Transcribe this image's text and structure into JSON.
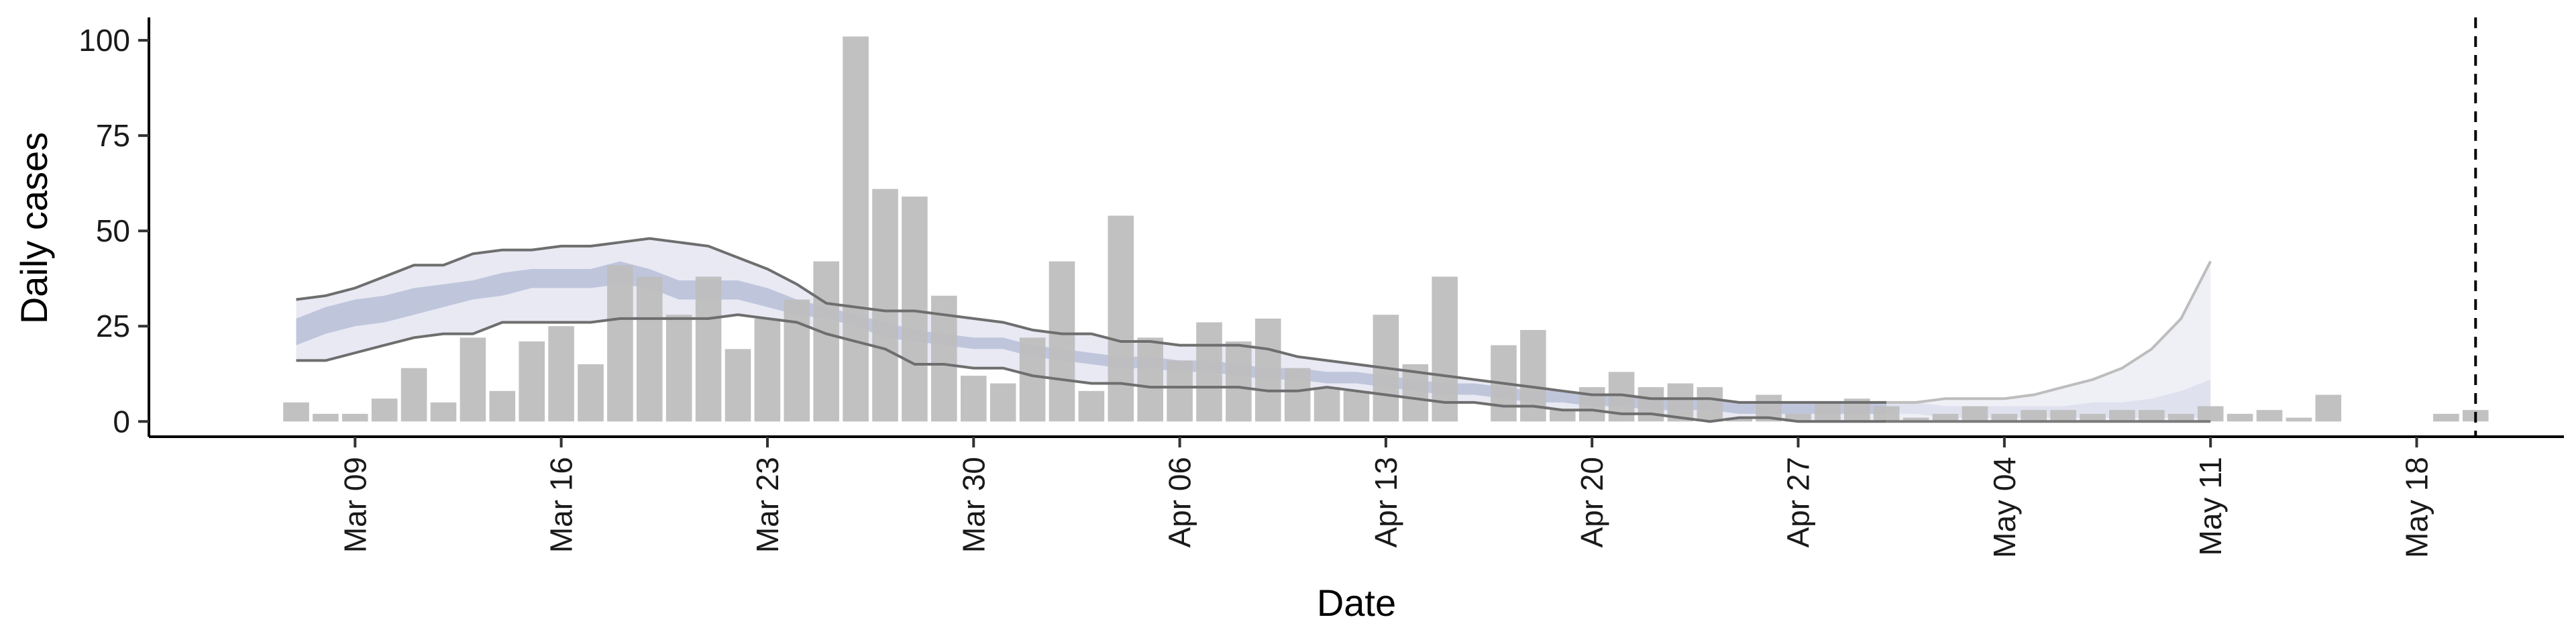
{
  "chart_data": {
    "type": "bar",
    "title": "",
    "xlabel": "Date",
    "ylabel": "Daily cases",
    "ylim": [
      -4,
      106
    ],
    "xlim": [
      "2020-03-02",
      "2020-05-23"
    ],
    "grid": false,
    "legend": "none",
    "y_ticks": [
      "0",
      "25",
      "50",
      "75",
      "100"
    ],
    "x_ticks": [
      {
        "date": "2020-03-09",
        "label": "Mar 09"
      },
      {
        "date": "2020-03-16",
        "label": "Mar 16"
      },
      {
        "date": "2020-03-23",
        "label": "Mar 23"
      },
      {
        "date": "2020-03-30",
        "label": "Mar 30"
      },
      {
        "date": "2020-04-06",
        "label": "Apr 06"
      },
      {
        "date": "2020-04-13",
        "label": "Apr 13"
      },
      {
        "date": "2020-04-20",
        "label": "Apr 20"
      },
      {
        "date": "2020-04-27",
        "label": "Apr 27"
      },
      {
        "date": "2020-05-04",
        "label": "May 04"
      },
      {
        "date": "2020-05-11",
        "label": "May 11"
      },
      {
        "date": "2020-05-18",
        "label": "May 18"
      }
    ],
    "reference_line_date": "2020-05-20",
    "bars": {
      "start_date": "2020-03-07",
      "values": [
        5,
        2,
        2,
        6,
        14,
        5,
        22,
        8,
        21,
        25,
        15,
        41,
        38,
        28,
        38,
        19,
        27,
        32,
        42,
        101,
        61,
        59,
        33,
        12,
        10,
        22,
        42,
        8,
        54,
        22,
        16,
        26,
        21,
        27,
        14,
        9,
        8,
        28,
        15,
        38,
        0,
        20,
        24,
        3,
        9,
        13,
        9,
        10,
        9,
        1,
        7,
        2,
        5,
        6,
        4,
        1,
        2,
        4,
        2,
        3,
        3,
        2,
        3,
        3,
        2,
        4,
        2,
        3,
        1,
        7,
        0,
        0,
        0,
        2,
        3
      ],
      "color": "#bebebe"
    },
    "estimate": {
      "start_date": "2020-03-07",
      "lower_90": [
        16,
        16,
        18,
        20,
        22,
        23,
        23,
        26,
        26,
        26,
        26,
        27,
        27,
        27,
        27,
        28,
        27,
        26,
        23,
        21,
        19,
        15,
        15,
        14,
        14,
        12,
        11,
        10,
        10,
        9,
        9,
        9,
        9,
        8,
        8,
        9,
        8,
        7,
        6,
        5,
        5,
        4,
        4,
        3,
        3,
        2,
        2,
        1,
        0,
        1,
        1,
        0,
        0,
        0,
        0,
        0,
        0,
        0,
        0,
        0,
        0,
        0,
        0,
        0,
        0,
        0
      ],
      "lower_50": [
        20,
        23,
        25,
        26,
        28,
        30,
        32,
        33,
        35,
        35,
        35,
        36,
        35,
        32,
        32,
        32,
        30,
        28,
        27,
        25,
        22,
        21,
        20,
        19,
        19,
        17,
        16,
        15,
        14,
        14,
        13,
        13,
        12,
        11,
        11,
        10,
        10,
        9,
        8,
        7,
        7,
        6,
        5,
        5,
        4,
        4,
        3,
        3,
        3,
        2,
        2,
        2,
        2,
        2,
        2,
        2,
        1,
        1,
        1,
        1,
        1,
        1,
        1,
        1,
        1,
        1
      ],
      "median": [
        22,
        25,
        27,
        29,
        31,
        32,
        34,
        36,
        36,
        36,
        36,
        38,
        37,
        34,
        34,
        34,
        32,
        30,
        28,
        26,
        24,
        22,
        21,
        20,
        20,
        18,
        17,
        16,
        15,
        15,
        14,
        14,
        13,
        12,
        12,
        11,
        11,
        10,
        9,
        8,
        8,
        7,
        6,
        6,
        5,
        5,
        4,
        4,
        4,
        3,
        3,
        3,
        3,
        3,
        3,
        3,
        2,
        2,
        2,
        2,
        2,
        2,
        2,
        2,
        3,
        3
      ],
      "upper_50": [
        27,
        30,
        32,
        33,
        35,
        36,
        37,
        39,
        40,
        40,
        40,
        42,
        40,
        37,
        37,
        37,
        35,
        32,
        30,
        28,
        26,
        24,
        23,
        22,
        22,
        20,
        19,
        18,
        17,
        17,
        16,
        16,
        15,
        14,
        14,
        13,
        13,
        12,
        11,
        10,
        10,
        9,
        8,
        8,
        7,
        7,
        6,
        6,
        6,
        5,
        5,
        5,
        5,
        5,
        5,
        5,
        4,
        4,
        4,
        4,
        4,
        5,
        5,
        6,
        8,
        11
      ],
      "upper_90": [
        32,
        33,
        35,
        38,
        41,
        41,
        44,
        45,
        45,
        46,
        46,
        47,
        48,
        47,
        46,
        43,
        40,
        36,
        31,
        30,
        29,
        29,
        28,
        27,
        26,
        24,
        23,
        23,
        21,
        21,
        20,
        20,
        20,
        19,
        17,
        16,
        15,
        14,
        13,
        12,
        11,
        10,
        9,
        8,
        7,
        7,
        6,
        6,
        6,
        5,
        5,
        5,
        5,
        5,
        5,
        5,
        6,
        6,
        6,
        7,
        9,
        11,
        14,
        19,
        27,
        42
      ],
      "estimate_until": "2020-04-30",
      "band_colors": {
        "outer": "#e8e9f3",
        "inner": "#bfc6dc",
        "outer_forecast": "#eff0f6",
        "inner_forecast": "#dfe2ee"
      },
      "line_color": "#6e6e6e"
    }
  }
}
